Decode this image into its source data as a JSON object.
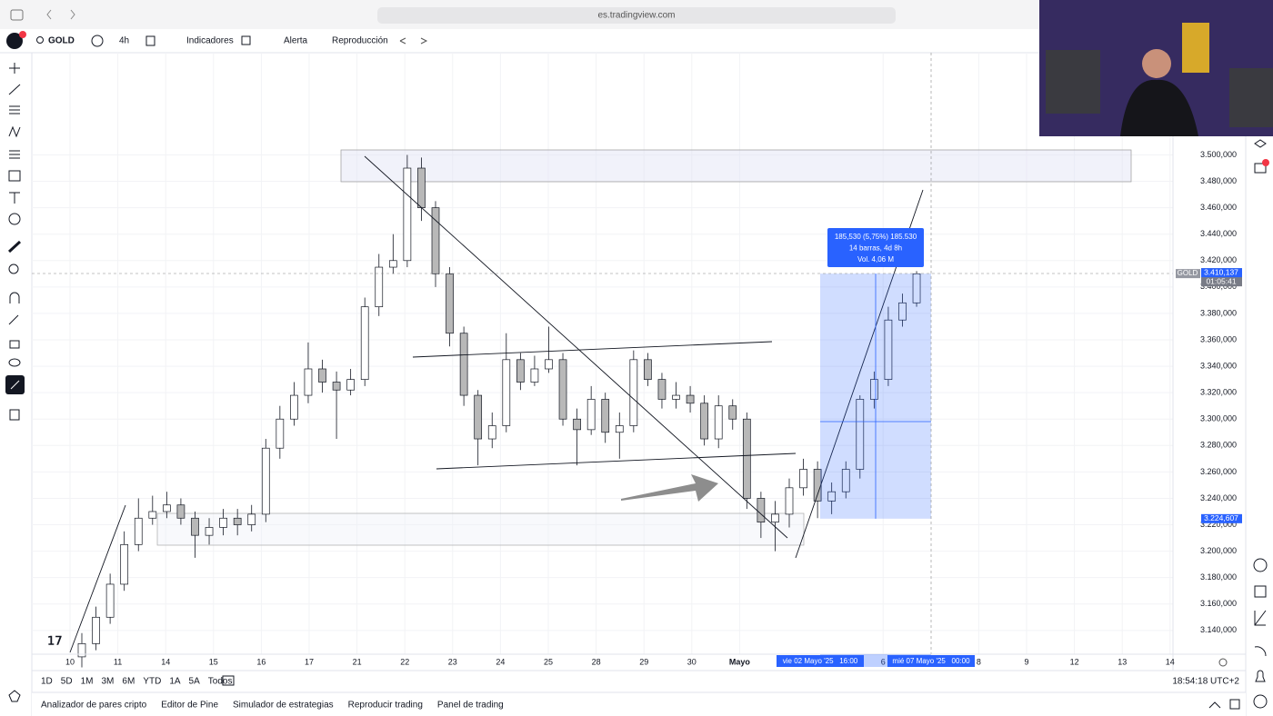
{
  "browser": {
    "url": "es.tradingview.com"
  },
  "toolbar": {
    "symbol": "GOLD",
    "interval": "4h",
    "indicators": "Indicadores",
    "alert": "Alerta",
    "replay": "Reproducción"
  },
  "chart_data": {
    "type": "candlestick",
    "x_labels": [
      "10",
      "11",
      "14",
      "15",
      "16",
      "17",
      "21",
      "22",
      "23",
      "24",
      "25",
      "28",
      "29",
      "30",
      "Mayo",
      null,
      null,
      "6",
      null,
      "8",
      "9",
      "12",
      "13",
      "14"
    ],
    "open": [
      3120,
      3130,
      3150,
      3175,
      3205,
      3225,
      3230,
      3235,
      3225,
      3212,
      3218,
      3225,
      3220,
      3228,
      3278,
      3300,
      3318,
      3338,
      3328,
      3322,
      3330,
      3385,
      3415,
      3420,
      3490,
      3460,
      3410,
      3365,
      3318,
      3285,
      3295,
      3345,
      3328,
      3338,
      3345,
      3300,
      3292,
      3315,
      3290,
      3295,
      3345,
      3330,
      3315,
      3318,
      3312,
      3285,
      3310,
      3300,
      3240,
      3222,
      3228,
      3248,
      3262,
      3238,
      3245,
      3262,
      3315,
      3330,
      3375,
      3388
    ],
    "high": [
      3138,
      3158,
      3183,
      3215,
      3240,
      3242,
      3245,
      3240,
      3230,
      3225,
      3232,
      3232,
      3235,
      3285,
      3310,
      3328,
      3358,
      3345,
      3336,
      3338,
      3392,
      3425,
      3440,
      3500,
      3498,
      3465,
      3415,
      3370,
      3322,
      3305,
      3365,
      3350,
      3348,
      3370,
      3350,
      3308,
      3325,
      3320,
      3305,
      3352,
      3350,
      3335,
      3328,
      3325,
      3318,
      3318,
      3315,
      3305,
      3245,
      3238,
      3255,
      3270,
      3268,
      3252,
      3268,
      3318,
      3336,
      3385,
      3395,
      3412
    ],
    "low": [
      3112,
      3125,
      3145,
      3170,
      3200,
      3220,
      3225,
      3220,
      3195,
      3205,
      3212,
      3212,
      3215,
      3222,
      3270,
      3295,
      3312,
      3320,
      3285,
      3318,
      3325,
      3378,
      3410,
      3415,
      3450,
      3400,
      3355,
      3310,
      3265,
      3278,
      3290,
      3322,
      3325,
      3335,
      3295,
      3265,
      3288,
      3282,
      3270,
      3290,
      3325,
      3308,
      3308,
      3305,
      3280,
      3278,
      3292,
      3232,
      3210,
      3200,
      3218,
      3242,
      3225,
      3228,
      3240,
      3255,
      3308,
      3325,
      3370,
      3385
    ],
    "close": [
      3130,
      3150,
      3175,
      3205,
      3225,
      3230,
      3235,
      3225,
      3212,
      3218,
      3225,
      3220,
      3228,
      3278,
      3300,
      3318,
      3338,
      3328,
      3322,
      3330,
      3385,
      3415,
      3420,
      3490,
      3460,
      3410,
      3365,
      3318,
      3285,
      3295,
      3345,
      3328,
      3338,
      3345,
      3300,
      3292,
      3315,
      3290,
      3295,
      3345,
      3330,
      3315,
      3318,
      3312,
      3285,
      3310,
      3300,
      3240,
      3222,
      3228,
      3248,
      3262,
      3238,
      3245,
      3262,
      3315,
      3330,
      3375,
      3388,
      3410
    ],
    "up_color": "#ffffff",
    "down_color": "#b8b8b8",
    "ylim": [
      3122,
      3576
    ],
    "yticks": [
      {
        "value": 3140,
        "label": "3.140,000"
      },
      {
        "value": 3160,
        "label": "3.160,000"
      },
      {
        "value": 3180,
        "label": "3.180,000"
      },
      {
        "value": 3200,
        "label": "3.200,000"
      },
      {
        "value": 3220,
        "label": "3.220,000"
      },
      {
        "value": 3240,
        "label": "3.240,000"
      },
      {
        "value": 3260,
        "label": "3.260,000"
      },
      {
        "value": 3280,
        "label": "3.280,000"
      },
      {
        "value": 3300,
        "label": "3.300,000"
      },
      {
        "value": 3320,
        "label": "3.320,000"
      },
      {
        "value": 3340,
        "label": "3.340,000"
      },
      {
        "value": 3360,
        "label": "3.360,000"
      },
      {
        "value": 3380,
        "label": "3.380,000"
      },
      {
        "value": 3400,
        "label": "3.400,000"
      },
      {
        "value": 3420,
        "label": "3.420,000"
      },
      {
        "value": 3440,
        "label": "3.440,000"
      },
      {
        "value": 3460,
        "label": "3.460,000"
      },
      {
        "value": 3480,
        "label": "3.480,000"
      },
      {
        "value": 3500,
        "label": "3.500,000"
      }
    ],
    "symbol_tag": "GOLD",
    "last_price": {
      "value": 3410.137,
      "label": "3.410,137"
    },
    "countdown": "01:05:41",
    "range_low": {
      "value": 3224.607,
      "label": "3.224,607"
    },
    "measure": [
      "185,530 (5,75%) 185.530",
      "14 barras, 4d 8h",
      "Vol. 4,06 M"
    ],
    "crosshair_dates": [
      "vie 02 Mayo '25   16:00",
      "mié 07 Mayo '25   00:00"
    ]
  },
  "ranges": [
    "1D",
    "5D",
    "1M",
    "3M",
    "6M",
    "YTD",
    "1A",
    "5A",
    "Todos"
  ],
  "clock": "18:54:18 UTC+2",
  "footer_tabs": [
    "Analizador de pares cripto",
    "Editor de Pine",
    "Simulador de estrategias",
    "Reproducir trading",
    "Panel de trading"
  ]
}
